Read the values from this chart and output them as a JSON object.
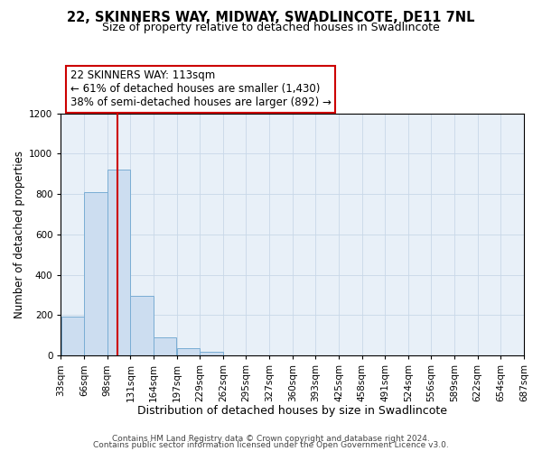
{
  "title1": "22, SKINNERS WAY, MIDWAY, SWADLINCOTE, DE11 7NL",
  "title2": "Size of property relative to detached houses in Swadlincote",
  "xlabel": "Distribution of detached houses by size in Swadlincote",
  "ylabel": "Number of detached properties",
  "bin_edges": [
    33,
    66,
    99,
    132,
    165,
    198,
    231,
    264,
    297,
    330,
    363,
    396,
    429,
    462,
    495,
    528,
    561,
    594,
    627,
    660,
    693
  ],
  "bin_labels": [
    "33sqm",
    "66sqm",
    "98sqm",
    "131sqm",
    "164sqm",
    "197sqm",
    "229sqm",
    "262sqm",
    "295sqm",
    "327sqm",
    "360sqm",
    "393sqm",
    "425sqm",
    "458sqm",
    "491sqm",
    "524sqm",
    "556sqm",
    "589sqm",
    "622sqm",
    "654sqm",
    "687sqm"
  ],
  "counts": [
    195,
    810,
    920,
    295,
    88,
    38,
    18,
    0,
    0,
    0,
    0,
    0,
    0,
    0,
    0,
    0,
    0,
    0,
    0,
    0
  ],
  "bar_color": "#ccddf0",
  "bar_edge_color": "#7aadd4",
  "vline_x": 113,
  "vline_color": "#cc0000",
  "ann_line1": "22 SKINNERS WAY: 113sqm",
  "ann_line2": "← 61% of detached houses are smaller (1,430)",
  "ann_line3": "38% of semi-detached houses are larger (892) →",
  "annotation_box_color": "#ffffff",
  "annotation_box_edge": "#cc0000",
  "ylim": [
    0,
    1200
  ],
  "yticks": [
    0,
    200,
    400,
    600,
    800,
    1000,
    1200
  ],
  "footer1": "Contains HM Land Registry data © Crown copyright and database right 2024.",
  "footer2": "Contains public sector information licensed under the Open Government Licence v3.0.",
  "background_color": "#ffffff",
  "ax_background": "#e8f0f8",
  "grid_color": "#c8d8e8",
  "title1_fontsize": 10.5,
  "title2_fontsize": 9,
  "xlabel_fontsize": 9,
  "ylabel_fontsize": 8.5,
  "tick_fontsize": 7.5,
  "footer_fontsize": 6.5,
  "ann_fontsize": 8.5
}
